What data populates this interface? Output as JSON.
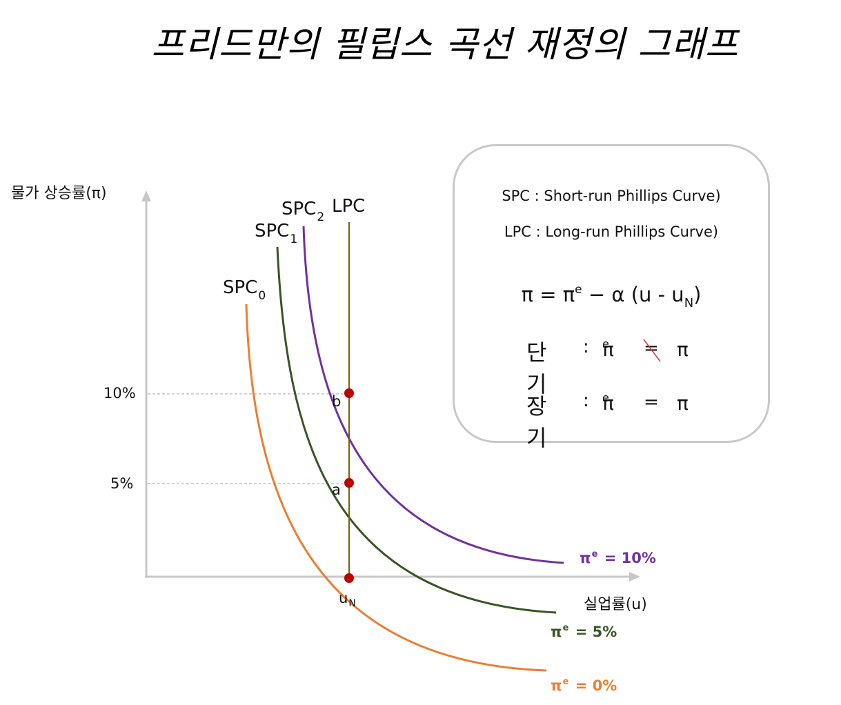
{
  "title": "프리드만의 필립스 곡선 재정의 그래프",
  "axes": {
    "y_label": "물가 상승률(π)",
    "x_label": "실업률(u)",
    "y_ticks": [
      "10%",
      "5%"
    ],
    "x_tick_base": "u",
    "x_tick_sub": "N"
  },
  "curves": {
    "spc0": {
      "base": "SPC",
      "sub": "0",
      "expect_label": "π",
      "expect_sup": "e",
      "expect_value": "= 0%",
      "color": "#ed7d31"
    },
    "spc1": {
      "base": "SPC",
      "sub": "1",
      "expect_label": "π",
      "expect_sup": "e",
      "expect_value": "= 5%",
      "color": "#375623"
    },
    "spc2": {
      "base": "SPC",
      "sub": "2",
      "expect_label": "π",
      "expect_sup": "e",
      "expect_value": "= 10%",
      "color": "#7030a0"
    },
    "lpc": {
      "label": "LPC",
      "color": "#7f6000"
    }
  },
  "points": {
    "a": "a",
    "b": "b",
    "color": "#c00000"
  },
  "legend_box": {
    "spc_def": "SPC : Short-run Phillips Curve)",
    "lpc_def": "LPC : Long-run Phillips Curve)",
    "equation": {
      "left": "π  =  π",
      "sup": "e",
      "middle": " − α  (u  -  u",
      "sub": "N",
      "end": ")"
    },
    "short_run": {
      "label": "단기",
      "colon": ":",
      "lhs": "π",
      "sup": "e",
      "op": "=",
      "rhs": "π",
      "strike_color": "#e03030"
    },
    "long_run": {
      "label": "장기",
      "colon": ":",
      "lhs": "π",
      "sup": "e",
      "op": "=",
      "rhs": "π"
    }
  }
}
